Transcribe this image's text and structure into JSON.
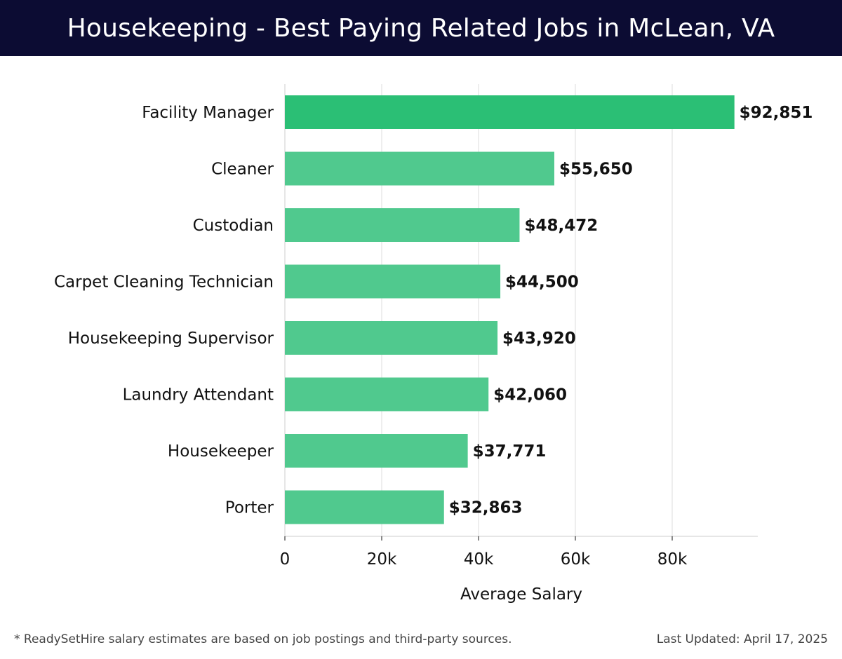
{
  "header": {
    "title": "Housekeeping - Best Paying Related Jobs in McLean, VA"
  },
  "colors": {
    "header_bg": "#0c0c33",
    "bar_top": "#2bbf75",
    "bar": "#50c98e",
    "grid": "#dddddd",
    "axis": "#cccccc",
    "text": "#111111"
  },
  "chart_data": {
    "type": "bar",
    "orientation": "horizontal",
    "categories": [
      "Facility Manager",
      "Cleaner",
      "Custodian",
      "Carpet Cleaning Technician",
      "Housekeeping Supervisor",
      "Laundry Attendant",
      "Housekeeper",
      "Porter"
    ],
    "values": [
      92851,
      55650,
      48472,
      44500,
      43920,
      42060,
      37771,
      32863
    ],
    "value_labels": [
      "$92,851",
      "$55,650",
      "$48,472",
      "$44,500",
      "$43,920",
      "$42,060",
      "$37,771",
      "$32,863"
    ],
    "xlabel": "Average Salary",
    "xlim": [
      0,
      97000
    ],
    "xticks": [
      0,
      20000,
      40000,
      60000,
      80000
    ],
    "xtick_labels": [
      "0",
      "20k",
      "40k",
      "60k",
      "80k"
    ],
    "grid": "vertical"
  },
  "footer": {
    "footnote": "* ReadySetHire salary estimates are based on job postings and third-party sources.",
    "updated": "Last Updated: April 17, 2025"
  }
}
